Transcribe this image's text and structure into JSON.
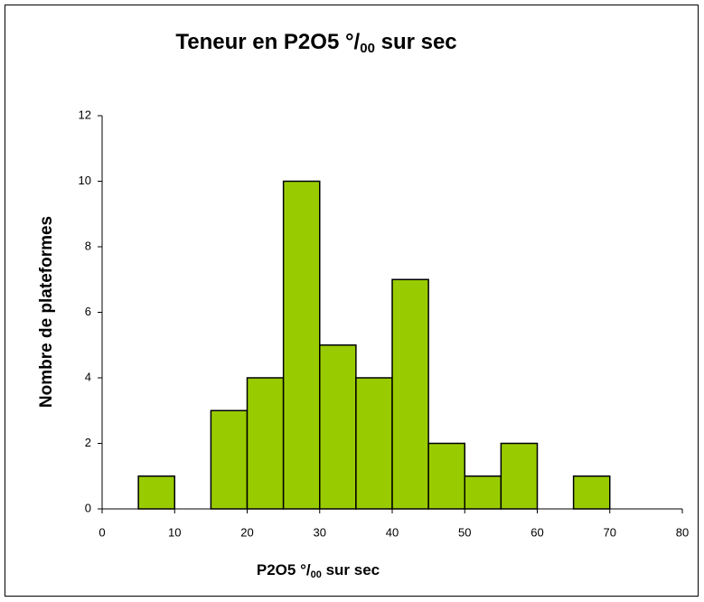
{
  "chart_data": {
    "type": "histogram",
    "title": [
      "Teneur en P2O5 °/",
      "00",
      " sur sec"
    ],
    "xlabel": [
      "P2O5 °/",
      "00",
      " sur sec"
    ],
    "ylabel": "Nombre de plateformes",
    "bins": [
      0,
      5,
      10,
      15,
      20,
      25,
      30,
      35,
      40,
      45,
      50,
      55,
      60,
      65,
      70,
      75,
      80
    ],
    "values": [
      0,
      1,
      0,
      3,
      4,
      10,
      5,
      4,
      7,
      2,
      1,
      2,
      0,
      1,
      0,
      0
    ],
    "color": "#99cc00",
    "xlim": [
      0,
      80
    ],
    "xticks": [
      0,
      10,
      20,
      30,
      40,
      50,
      60,
      70,
      80
    ],
    "ylim": [
      0,
      12
    ],
    "yticks": [
      0,
      2,
      4,
      6,
      8,
      10,
      12
    ]
  }
}
